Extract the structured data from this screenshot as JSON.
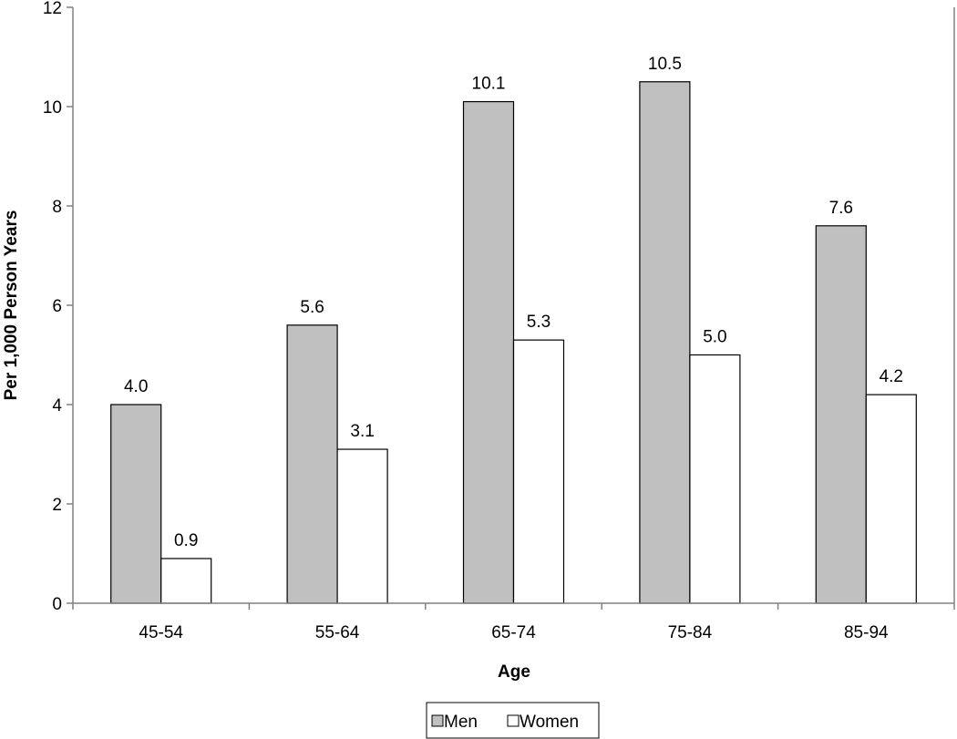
{
  "chart_data": {
    "type": "bar",
    "categories": [
      "45-54",
      "55-64",
      "65-74",
      "75-84",
      "85-94"
    ],
    "series": [
      {
        "name": "Men",
        "values": [
          4.0,
          5.6,
          10.1,
          10.5,
          7.6
        ],
        "labels": [
          "4.0",
          "5.6",
          "10.1",
          "10.5",
          "7.6"
        ],
        "color": "#c0c0c0"
      },
      {
        "name": "Women",
        "values": [
          0.9,
          3.1,
          5.3,
          5.0,
          4.2
        ],
        "labels": [
          "0.9",
          "3.1",
          "5.3",
          "5.0",
          "4.2"
        ],
        "color": "#ffffff"
      }
    ],
    "xlabel": "Age",
    "ylabel": "Per 1,000 Person Years",
    "ylim": [
      0,
      12
    ],
    "yticks": [
      "0",
      "2",
      "4",
      "6",
      "8",
      "10",
      "12"
    ],
    "grid": false,
    "legend_position": "bottom-center"
  }
}
